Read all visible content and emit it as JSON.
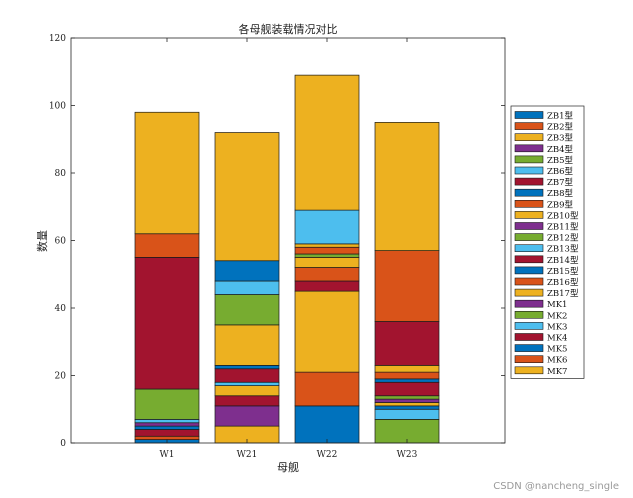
{
  "colors": [
    "#0072BD",
    "#D95319",
    "#EDB120",
    "#7E2F8E",
    "#77AC30",
    "#4DBEEE",
    "#A2142F"
  ],
  "watermark": "CSDN @nancheng_single",
  "chart_data": {
    "type": "bar",
    "stacked": true,
    "title": "各母舰装载情况对比",
    "xlabel": "母舰",
    "ylabel": "数量",
    "ylim": [
      0,
      120
    ],
    "yticks": [
      0,
      20,
      40,
      60,
      80,
      100,
      120
    ],
    "grid": false,
    "legend_position": "right",
    "categories": [
      "W1",
      "W21",
      "W22",
      "W23"
    ],
    "series": [
      {
        "name": "ZB1型",
        "values": [
          1,
          0,
          11,
          0
        ]
      },
      {
        "name": "ZB2型",
        "values": [
          1,
          0,
          10,
          0
        ]
      },
      {
        "name": "ZB3型",
        "values": [
          0,
          5,
          24,
          0
        ]
      },
      {
        "name": "ZB4型",
        "values": [
          0,
          6,
          0,
          0
        ]
      },
      {
        "name": "ZB5型",
        "values": [
          0,
          0,
          0,
          7
        ]
      },
      {
        "name": "ZB6型",
        "values": [
          0,
          0,
          0,
          3
        ]
      },
      {
        "name": "ZB7型",
        "values": [
          2,
          3,
          3,
          0
        ]
      },
      {
        "name": "ZB8型",
        "values": [
          1,
          0,
          0,
          1
        ]
      },
      {
        "name": "ZB9型",
        "values": [
          0,
          0,
          4,
          0
        ]
      },
      {
        "name": "ZB10型",
        "values": [
          0,
          3,
          3,
          1
        ]
      },
      {
        "name": "ZB11型",
        "values": [
          1,
          0,
          0,
          1
        ]
      },
      {
        "name": "ZB12型",
        "values": [
          0,
          0,
          1,
          1
        ]
      },
      {
        "name": "ZB13型",
        "values": [
          1,
          1,
          0,
          0
        ]
      },
      {
        "name": "ZB14型",
        "values": [
          0,
          4,
          0,
          4
        ]
      },
      {
        "name": "ZB15型",
        "values": [
          0,
          1,
          0,
          1
        ]
      },
      {
        "name": "ZB16型",
        "values": [
          0,
          0,
          2,
          2
        ]
      },
      {
        "name": "ZB17型",
        "values": [
          0,
          12,
          1,
          2
        ]
      },
      {
        "name": "MK1",
        "values": [
          0,
          0,
          0,
          0
        ]
      },
      {
        "name": "MK2",
        "values": [
          9,
          9,
          0,
          0
        ]
      },
      {
        "name": "MK3",
        "values": [
          0,
          4,
          10,
          0
        ]
      },
      {
        "name": "MK4",
        "values": [
          39,
          0,
          0,
          13
        ]
      },
      {
        "name": "MK5",
        "values": [
          0,
          6,
          0,
          0
        ]
      },
      {
        "name": "MK6",
        "values": [
          7,
          0,
          0,
          21
        ]
      },
      {
        "name": "MK7",
        "values": [
          36,
          38,
          40,
          38
        ]
      }
    ]
  }
}
